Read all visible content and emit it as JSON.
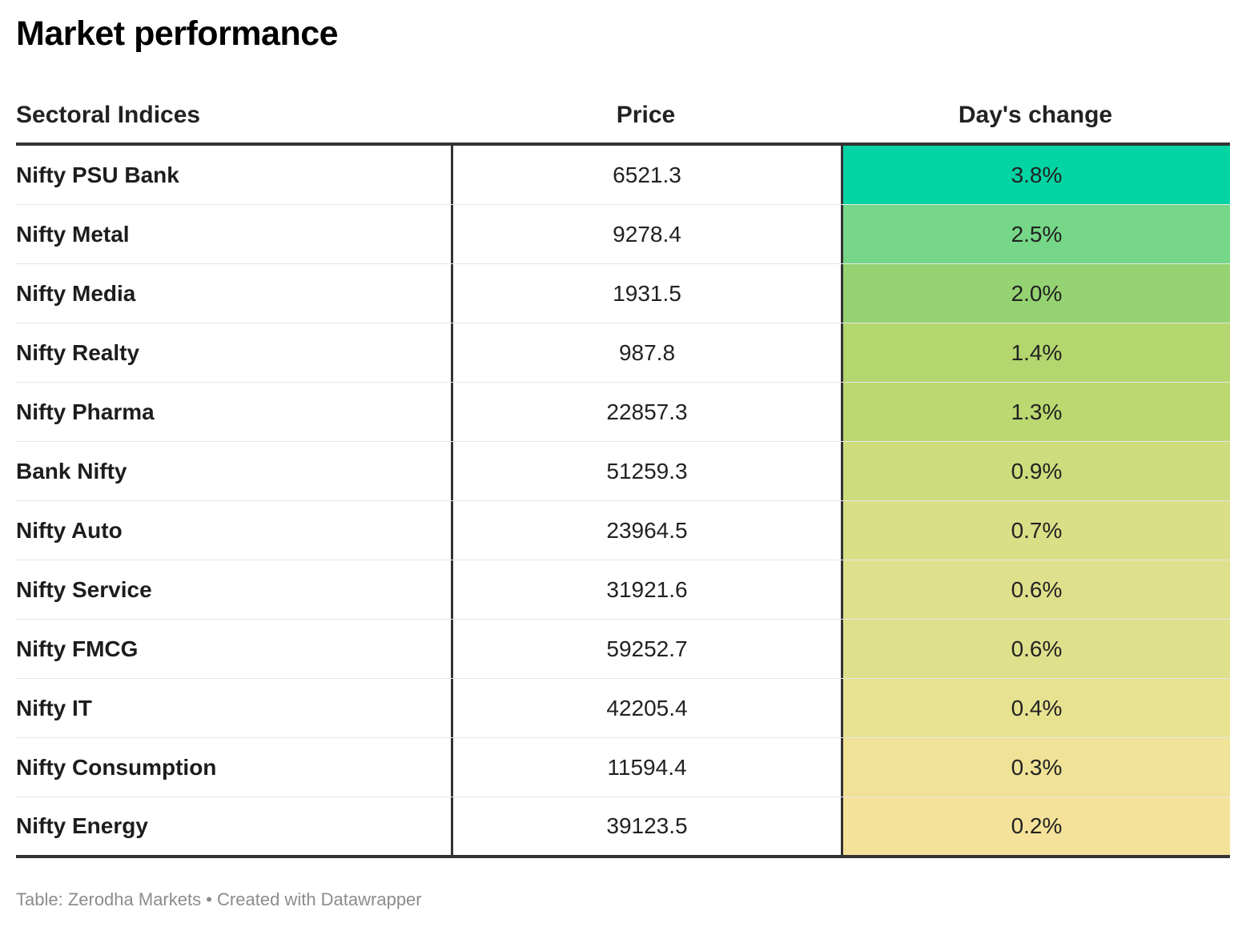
{
  "title": "Market performance",
  "footer": {
    "source": "Table: Zerodha Markets",
    "separator": " • ",
    "credit": "Created with Datawrapper"
  },
  "chart_data": {
    "type": "table",
    "title": "Market performance",
    "columns": [
      "Sectoral Indices",
      "Price",
      "Day's change"
    ],
    "rows": [
      {
        "name": "Nifty PSU Bank",
        "price": "6521.3",
        "change": "3.8%",
        "color": "#03d4a3"
      },
      {
        "name": "Nifty Metal",
        "price": "9278.4",
        "change": "2.5%",
        "color": "#75d787"
      },
      {
        "name": "Nifty Media",
        "price": "1931.5",
        "change": "2.0%",
        "color": "#95d372"
      },
      {
        "name": "Nifty Realty",
        "price": "987.8",
        "change": "1.4%",
        "color": "#b4d66e"
      },
      {
        "name": "Nifty Pharma",
        "price": "22857.3",
        "change": "1.3%",
        "color": "#bbd871"
      },
      {
        "name": "Bank Nifty",
        "price": "51259.3",
        "change": "0.9%",
        "color": "#cddc7c"
      },
      {
        "name": "Nifty Auto",
        "price": "23964.5",
        "change": "0.7%",
        "color": "#d9df86"
      },
      {
        "name": "Nifty Service",
        "price": "31921.6",
        "change": "0.6%",
        "color": "#dfe08b"
      },
      {
        "name": "Nifty FMCG",
        "price": "59252.7",
        "change": "0.6%",
        "color": "#dfe08b"
      },
      {
        "name": "Nifty IT",
        "price": "42205.4",
        "change": "0.4%",
        "color": "#e7e290"
      },
      {
        "name": "Nifty Consumption",
        "price": "11594.4",
        "change": "0.3%",
        "color": "#f0e296"
      },
      {
        "name": "Nifty Energy",
        "price": "39123.5",
        "change": "0.2%",
        "color": "#f5e29a"
      }
    ]
  }
}
